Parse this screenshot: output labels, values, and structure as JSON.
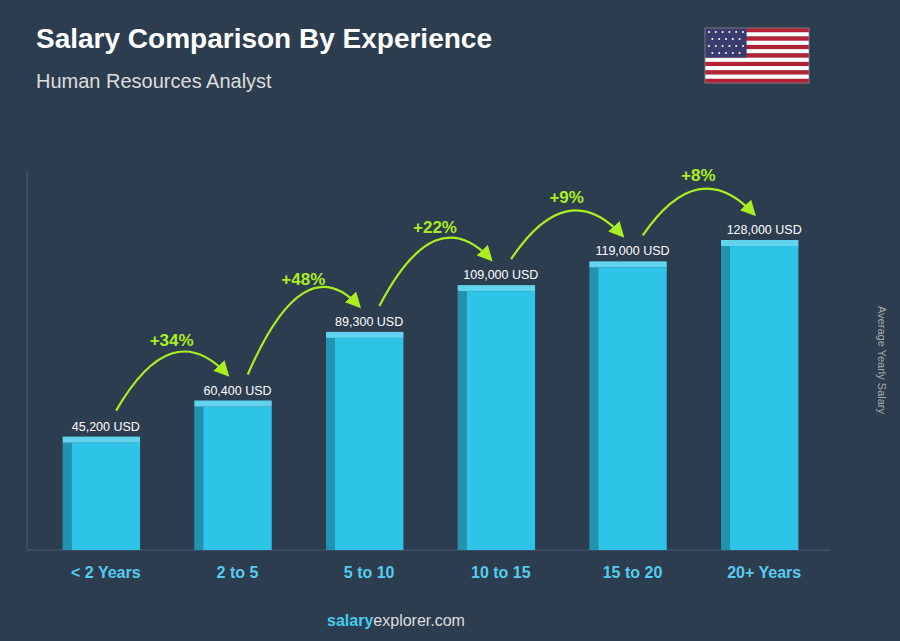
{
  "chart_data": {
    "type": "bar",
    "title": "Salary Comparison By Experience",
    "subtitle": "Human Resources Analyst",
    "categories": [
      "< 2 Years",
      "2 to 5",
      "5 to 10",
      "10 to 15",
      "15 to 20",
      "20+ Years"
    ],
    "values": [
      45200,
      60400,
      89300,
      109000,
      119000,
      128000
    ],
    "value_labels": [
      "45,200 USD",
      "60,400 USD",
      "89,300 USD",
      "109,000 USD",
      "119,000 USD",
      "128,000 USD"
    ],
    "data_labels": true,
    "annotations": [
      "+34%",
      "+48%",
      "+22%",
      "+9%",
      "+8%"
    ],
    "y_label": "Average Yearly Salary",
    "footer": [
      "salary",
      "explorer.com"
    ],
    "color": "#2ec4e8",
    "ylim": [
      0,
      160000
    ],
    "tick_labels": false,
    "grid": false
  }
}
